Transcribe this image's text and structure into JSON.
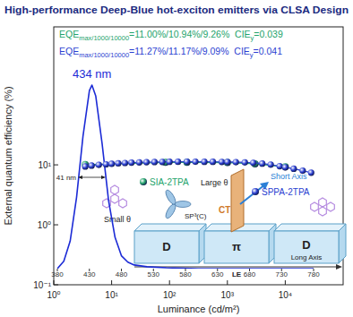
{
  "chart_data": [
    {
      "type": "line",
      "title": "High-performance Deep-Blue hot-exciton emitters via CLSA Design",
      "xlabel": "Luminance (cd/m²)",
      "ylabel": "External quantum efficiency (%)",
      "log": true,
      "xlim": [
        1,
        100000
      ],
      "ylim": [
        0.1,
        2000
      ],
      "xticks": [
        {
          "value": 1,
          "label": "10⁰"
        },
        {
          "value": 10,
          "label": "10¹"
        },
        {
          "value": 100,
          "label": "10²"
        },
        {
          "value": 1000,
          "label": "10³"
        },
        {
          "value": 10000,
          "label": "10⁴"
        }
      ],
      "yticks": [
        {
          "value": 0.1,
          "label": "10⁻¹"
        },
        {
          "value": 1,
          "label": "10⁰"
        },
        {
          "value": 10,
          "label": "10¹"
        }
      ],
      "series": [
        {
          "name": "SIA-2TPA",
          "color": "#23a36b",
          "marker": "circle",
          "line_style": "solid",
          "x": [
            3.5,
            85,
            200,
            1000,
            3000,
            10000
          ],
          "values": [
            10.1,
            11.0,
            10.98,
            10.94,
            10.4,
            9.26
          ]
        },
        {
          "name": "SPPA-2TPA",
          "color": "#2b3fd1",
          "marker": "circle",
          "line_style": "solid",
          "x": [
            3.5,
            4.5,
            6,
            8,
            10,
            13,
            17,
            22,
            30,
            40,
            55,
            75,
            100,
            140,
            200,
            280,
            400,
            560,
            800,
            1000,
            1400,
            2000,
            2800,
            4000,
            5600,
            8000,
            10000,
            14000,
            20000,
            28000
          ],
          "values": [
            9.4,
            9.7,
            10.0,
            10.2,
            10.4,
            10.6,
            10.75,
            10.9,
            11.0,
            11.08,
            11.15,
            11.2,
            11.23,
            11.25,
            11.27,
            11.27,
            11.26,
            11.24,
            11.2,
            11.17,
            11.1,
            10.98,
            10.8,
            10.5,
            10.1,
            9.5,
            9.09,
            8.6,
            8.0,
            7.4
          ]
        }
      ],
      "annotations": [
        [
          "EQE",
          "max/1000/10000",
          "=11.00%/10.94%/9.26%  CIE",
          "y",
          "=0.039"
        ],
        [
          "EQE",
          "max/1000/10000",
          "=11.27%/11.17%/9.09%  CIE",
          "y",
          "=0.041"
        ]
      ]
    },
    {
      "type": "line",
      "xlim": [
        380,
        780
      ],
      "ylim": [
        0,
        1
      ],
      "xticks": [
        380,
        430,
        480,
        530,
        580,
        630,
        680,
        730,
        780
      ],
      "tick_labels": "x",
      "series": [
        {
          "color": "#1c2bd6",
          "line_style": "solid",
          "x": [
            380,
            390,
            400,
            410,
            420,
            430,
            434,
            440,
            450,
            460,
            470,
            480,
            490,
            500,
            520,
            550,
            600,
            650,
            700,
            780
          ],
          "values": [
            0,
            0.04,
            0.15,
            0.39,
            0.72,
            0.97,
            1,
            0.94,
            0.68,
            0.37,
            0.17,
            0.07,
            0.035,
            0.02,
            0.01,
            0.005,
            0,
            0,
            0,
            0
          ]
        }
      ],
      "annotations": [
        "434 nm",
        "41 nm"
      ]
    }
  ],
  "diagram": {
    "labels": [
      "Large θ",
      "Small θ",
      "Short Axis",
      "CT",
      "SP³(C)",
      "D",
      "π",
      "D",
      "Long Axis",
      "LE"
    ]
  }
}
